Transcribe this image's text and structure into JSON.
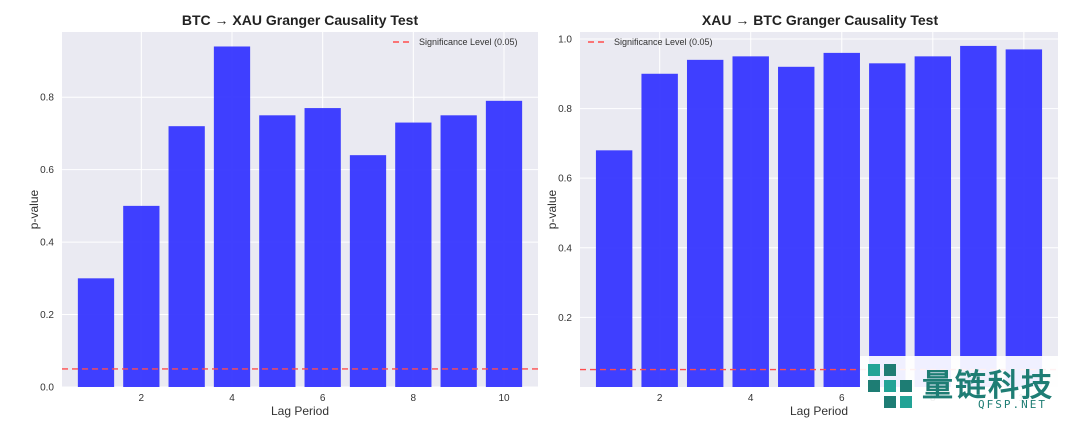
{
  "chart_data": [
    {
      "type": "bar",
      "title": "BTC → XAU Granger Causality Test",
      "xlabel": "Lag Period",
      "ylabel": "p-value",
      "x": [
        1,
        2,
        3,
        4,
        5,
        6,
        7,
        8,
        9,
        10
      ],
      "values": [
        0.3,
        0.5,
        0.72,
        0.94,
        0.75,
        0.77,
        0.64,
        0.73,
        0.75,
        0.79
      ],
      "xticks": [
        2,
        4,
        6,
        8,
        10
      ],
      "yticks": [
        0.0,
        0.2,
        0.4,
        0.6,
        0.8
      ],
      "ylim": [
        0,
        0.98
      ],
      "xlim": [
        0.25,
        10.75
      ],
      "bar_color": "#3636ff",
      "threshold": {
        "value": 0.05,
        "label": "Significance Level (0.05)",
        "color": "#ff4d4d"
      },
      "legend_position": "top-right",
      "grid": true
    },
    {
      "type": "bar",
      "title": "XAU → BTC Granger Causality Test",
      "xlabel": "Lag Period",
      "ylabel": "p-value",
      "x": [
        1,
        2,
        3,
        4,
        5,
        6,
        7,
        8,
        9,
        10
      ],
      "values": [
        0.68,
        0.9,
        0.94,
        0.95,
        0.92,
        0.96,
        0.93,
        0.95,
        0.98,
        0.97
      ],
      "xticks": [
        2,
        4,
        6,
        8,
        10
      ],
      "yticks": [
        0.2,
        0.4,
        0.6,
        0.8,
        1.0
      ],
      "ylim": [
        0,
        1.02
      ],
      "xlim": [
        0.25,
        10.75
      ],
      "bar_color": "#3636ff",
      "threshold": {
        "value": 0.05,
        "label": "Significance Level (0.05)",
        "color": "#ff4d4d"
      },
      "legend_position": "top-left",
      "grid": true
    }
  ],
  "watermark": {
    "text": "量链科技",
    "subtext": "QFSP.NET",
    "color": "#1e7d74"
  }
}
